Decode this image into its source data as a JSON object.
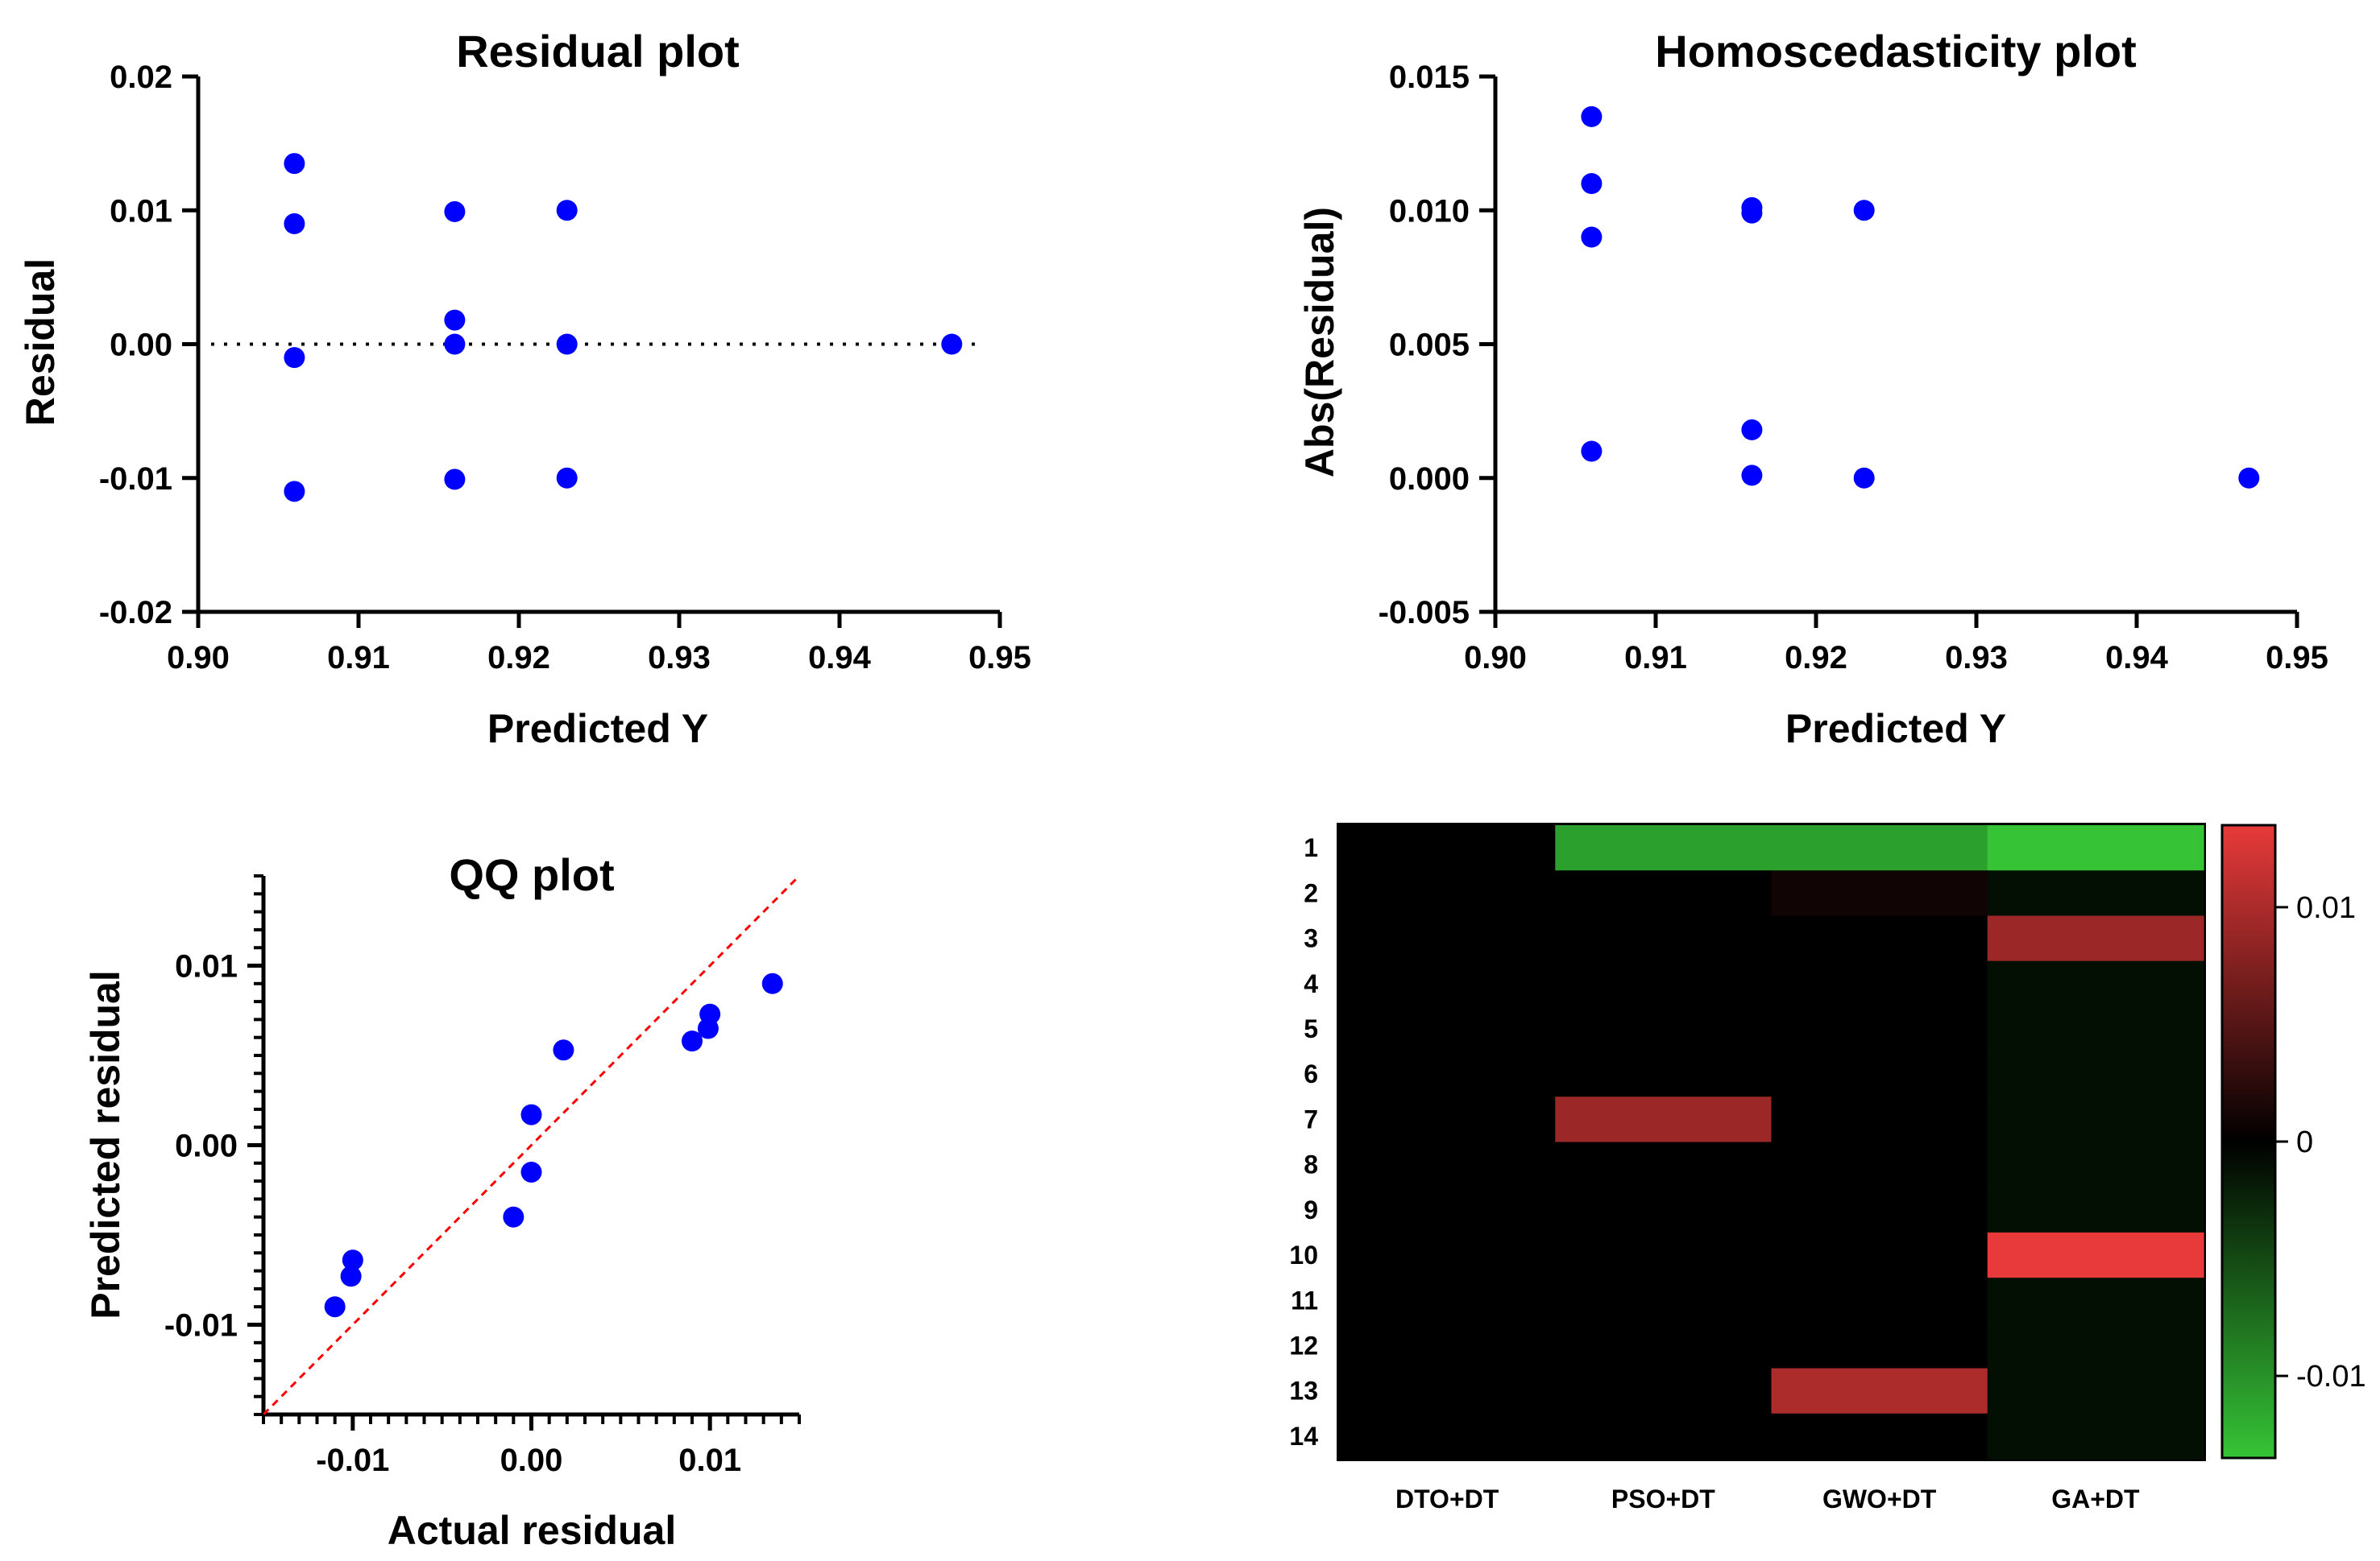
{
  "chart_data": [
    {
      "id": "residual",
      "type": "scatter",
      "title": "Residual plot",
      "xlabel": "Predicted Y",
      "ylabel": "Residual",
      "xlim": [
        0.9,
        0.95
      ],
      "ylim": [
        -0.02,
        0.02
      ],
      "xticks": [
        "0.90",
        "0.91",
        "0.92",
        "0.93",
        "0.94",
        "0.95"
      ],
      "yticks": [
        "0.02",
        "0.01",
        "0.00",
        "-0.01",
        "-0.02"
      ],
      "reference_line": {
        "y": 0,
        "style": "dotted",
        "color": "#000000"
      },
      "point_color": "#0000ff",
      "points": [
        {
          "x": 0.906,
          "y": 0.0135
        },
        {
          "x": 0.906,
          "y": 0.009
        },
        {
          "x": 0.906,
          "y": -0.001
        },
        {
          "x": 0.906,
          "y": -0.011
        },
        {
          "x": 0.916,
          "y": 0.0099
        },
        {
          "x": 0.916,
          "y": 0.0018
        },
        {
          "x": 0.916,
          "y": 0.0
        },
        {
          "x": 0.916,
          "y": -0.0101
        },
        {
          "x": 0.923,
          "y": 0.01
        },
        {
          "x": 0.923,
          "y": 0.0
        },
        {
          "x": 0.923,
          "y": -0.01
        },
        {
          "x": 0.947,
          "y": 0.0
        }
      ]
    },
    {
      "id": "homoscedasticity",
      "type": "scatter",
      "title": "Homoscedasticity plot",
      "xlabel": "Predicted Y",
      "ylabel": "Abs(Residual)",
      "xlim": [
        0.9,
        0.95
      ],
      "ylim": [
        -0.005,
        0.015
      ],
      "xticks": [
        "0.90",
        "0.91",
        "0.92",
        "0.93",
        "0.94",
        "0.95"
      ],
      "yticks": [
        "0.015",
        "0.010",
        "0.005",
        "0.000",
        "-0.005"
      ],
      "point_color": "#0000ff",
      "points": [
        {
          "x": 0.906,
          "y": 0.0135
        },
        {
          "x": 0.906,
          "y": 0.011
        },
        {
          "x": 0.906,
          "y": 0.009
        },
        {
          "x": 0.906,
          "y": 0.001
        },
        {
          "x": 0.916,
          "y": 0.0101
        },
        {
          "x": 0.916,
          "y": 0.0099
        },
        {
          "x": 0.916,
          "y": 0.0018
        },
        {
          "x": 0.916,
          "y": 0.0001
        },
        {
          "x": 0.923,
          "y": 0.01
        },
        {
          "x": 0.923,
          "y": 0.0
        },
        {
          "x": 0.947,
          "y": 0.0
        }
      ]
    },
    {
      "id": "qq",
      "type": "scatter",
      "title": "QQ plot",
      "xlabel": "Actual residual",
      "ylabel": "Predicted residual",
      "xlim": [
        -0.015,
        0.015
      ],
      "ylim": [
        -0.015,
        0.015
      ],
      "xticks": [
        "-0.01",
        "0.00",
        "0.01"
      ],
      "yticks": [
        "0.01",
        "0.00",
        "-0.01"
      ],
      "reference_line": {
        "type": "identity",
        "style": "dashed",
        "color": "#ff0000"
      },
      "point_color": "#0000ff",
      "points": [
        {
          "x": -0.011,
          "y": -0.009
        },
        {
          "x": -0.0101,
          "y": -0.0073
        },
        {
          "x": -0.01,
          "y": -0.0064
        },
        {
          "x": -0.001,
          "y": -0.004
        },
        {
          "x": 0.0,
          "y": -0.0015
        },
        {
          "x": 0.0,
          "y": 0.0017
        },
        {
          "x": 0.0018,
          "y": 0.0053
        },
        {
          "x": 0.009,
          "y": 0.0058
        },
        {
          "x": 0.0099,
          "y": 0.0065
        },
        {
          "x": 0.01,
          "y": 0.0073
        },
        {
          "x": 0.0135,
          "y": 0.009
        }
      ]
    },
    {
      "id": "heatmap",
      "type": "heatmap",
      "title": "",
      "rows": [
        "1",
        "2",
        "3",
        "4",
        "5",
        "6",
        "7",
        "8",
        "9",
        "10",
        "11",
        "12",
        "13",
        "14"
      ],
      "columns": [
        "DTO+DT",
        "PSO+DT",
        "GWO+DT",
        "GA+DT"
      ],
      "values": [
        [
          0,
          -0.011,
          -0.011,
          -0.0135
        ],
        [
          0,
          0,
          0.001,
          -0.001
        ],
        [
          0,
          0,
          0,
          0.009
        ],
        [
          0,
          0,
          0,
          -0.001
        ],
        [
          0,
          0,
          0,
          -0.001
        ],
        [
          0,
          0,
          0,
          -0.001
        ],
        [
          0,
          0.009,
          0,
          -0.001
        ],
        [
          0,
          0,
          0,
          -0.001
        ],
        [
          0,
          0,
          0,
          -0.001
        ],
        [
          0,
          0,
          0,
          0.0135
        ],
        [
          0,
          0,
          0,
          -0.001
        ],
        [
          0,
          0,
          0,
          -0.001
        ],
        [
          0,
          0,
          0.01,
          -0.001
        ],
        [
          0,
          0,
          0,
          -0.001
        ]
      ],
      "colorbar": {
        "min": -0.0135,
        "max": 0.0135,
        "ticks": [
          {
            "value": 0.01,
            "label": "0.01"
          },
          {
            "value": 0,
            "label": "0"
          },
          {
            "value": -0.01,
            "label": "-0.01"
          }
        ],
        "high_color": "#e83a3a",
        "mid_color": "#000000",
        "low_color": "#36c436"
      }
    }
  ]
}
